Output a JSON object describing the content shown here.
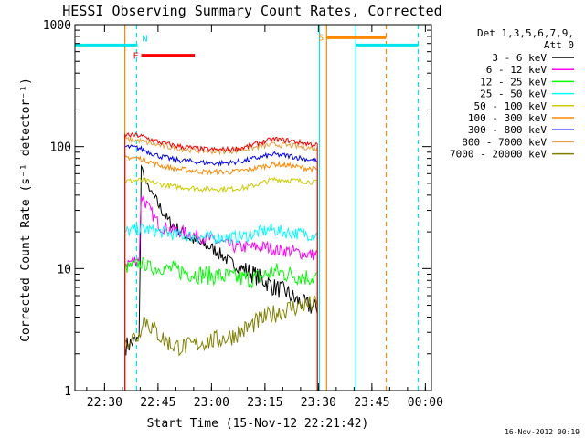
{
  "chart_data": {
    "type": "line",
    "title": "HESSI Observing Summary Count Rates, Corrected",
    "xlabel": "Start Time (15-Nov-12 22:21:42)",
    "ylabel": "Corrected Count Rate (s⁻¹ detector⁻¹)",
    "footer": "16-Nov-2012 00:19",
    "x_unit": "minutes since 22:21:42 on 15-Nov-12",
    "xlim": [
      0,
      100
    ],
    "ylim": [
      1,
      1000
    ],
    "yscale": "log",
    "x_ticks": [
      {
        "label": "22:30",
        "x": 8.3
      },
      {
        "label": "22:45",
        "x": 23.3
      },
      {
        "label": "23:00",
        "x": 38.3
      },
      {
        "label": "23:15",
        "x": 53.3
      },
      {
        "label": "23:30",
        "x": 68.3
      },
      {
        "label": "23:45",
        "x": 83.3
      },
      {
        "label": "00:00",
        "x": 98.3
      }
    ],
    "y_ticks": [
      {
        "label": "1",
        "y": 1
      },
      {
        "label": "10",
        "y": 10
      },
      {
        "label": "100",
        "y": 100
      },
      {
        "label": "1000",
        "y": 1000
      }
    ],
    "legend": {
      "header_line1": "Det 1,3,5,6,7,9,",
      "header_line2": "Att 0",
      "placement": "right"
    },
    "series": [
      {
        "name": "3 - 6 keV",
        "color": "#000000",
        "points": [
          [
            14,
            2.3
          ],
          [
            18,
            2.6
          ],
          [
            18.6,
            70
          ],
          [
            20,
            50
          ],
          [
            23,
            35
          ],
          [
            26,
            25
          ],
          [
            29,
            21
          ],
          [
            32,
            18
          ],
          [
            35,
            16
          ],
          [
            38,
            15
          ],
          [
            41,
            13
          ],
          [
            44,
            11
          ],
          [
            47,
            10
          ],
          [
            50,
            9
          ],
          [
            53,
            8
          ],
          [
            56,
            7
          ],
          [
            59,
            6.5
          ],
          [
            62,
            5.5
          ],
          [
            65,
            5
          ],
          [
            68,
            4.7
          ]
        ]
      },
      {
        "name": "6 - 12 keV",
        "color": "#ff00ff",
        "points": [
          [
            14,
            11
          ],
          [
            18,
            12
          ],
          [
            18.6,
            40
          ],
          [
            21,
            30
          ],
          [
            24,
            22
          ],
          [
            27,
            21
          ],
          [
            30,
            20
          ],
          [
            33,
            19
          ],
          [
            36,
            18
          ],
          [
            39,
            17
          ],
          [
            42,
            16
          ],
          [
            45,
            15
          ],
          [
            48,
            15
          ],
          [
            51,
            15
          ],
          [
            54,
            15
          ],
          [
            57,
            14
          ],
          [
            60,
            14
          ],
          [
            63,
            13.5
          ],
          [
            66,
            13
          ],
          [
            68,
            13
          ]
        ]
      },
      {
        "name": "12 - 25 keV",
        "color": "#00ff00",
        "points": [
          [
            14,
            10
          ],
          [
            18,
            11
          ],
          [
            19,
            11
          ],
          [
            22,
            10
          ],
          [
            26,
            10
          ],
          [
            30,
            9.5
          ],
          [
            34,
            9
          ],
          [
            38,
            8.8
          ],
          [
            42,
            8.6
          ],
          [
            46,
            8.3
          ],
          [
            50,
            8.2
          ],
          [
            54,
            9
          ],
          [
            56,
            9.5
          ],
          [
            60,
            9
          ],
          [
            64,
            8.6
          ],
          [
            68,
            8.4
          ]
        ]
      },
      {
        "name": "25 - 50 keV",
        "color": "#00ffff",
        "points": [
          [
            14,
            20
          ],
          [
            18,
            21
          ],
          [
            20,
            21
          ],
          [
            24,
            20
          ],
          [
            28,
            19
          ],
          [
            32,
            18.5
          ],
          [
            36,
            18
          ],
          [
            40,
            18
          ],
          [
            44,
            18
          ],
          [
            48,
            18.5
          ],
          [
            52,
            20
          ],
          [
            55,
            21
          ],
          [
            58,
            20
          ],
          [
            62,
            19.5
          ],
          [
            66,
            19
          ],
          [
            68,
            19
          ]
        ]
      },
      {
        "name": "50 - 100 keV",
        "color": "#cccc00",
        "points": [
          [
            14,
            52
          ],
          [
            18,
            53
          ],
          [
            20,
            52
          ],
          [
            24,
            49
          ],
          [
            28,
            47
          ],
          [
            32,
            46
          ],
          [
            36,
            45
          ],
          [
            40,
            45
          ],
          [
            44,
            45
          ],
          [
            48,
            46
          ],
          [
            52,
            50
          ],
          [
            56,
            54
          ],
          [
            60,
            53
          ],
          [
            64,
            52
          ],
          [
            68,
            51
          ]
        ]
      },
      {
        "name": "100 - 300 keV",
        "color": "#ff8800",
        "points": [
          [
            14,
            82
          ],
          [
            18,
            80
          ],
          [
            20,
            77
          ],
          [
            24,
            70
          ],
          [
            28,
            66
          ],
          [
            32,
            64
          ],
          [
            36,
            62
          ],
          [
            40,
            62
          ],
          [
            44,
            62
          ],
          [
            48,
            64
          ],
          [
            52,
            68
          ],
          [
            56,
            72
          ],
          [
            60,
            70
          ],
          [
            64,
            67
          ],
          [
            68,
            65
          ]
        ]
      },
      {
        "name": "300 - 800 keV",
        "color": "#0000ff",
        "points": [
          [
            14,
            100
          ],
          [
            18,
            97
          ],
          [
            20,
            92
          ],
          [
            24,
            83
          ],
          [
            28,
            78
          ],
          [
            32,
            76
          ],
          [
            36,
            74
          ],
          [
            40,
            73
          ],
          [
            44,
            74
          ],
          [
            48,
            77
          ],
          [
            52,
            82
          ],
          [
            56,
            86
          ],
          [
            60,
            84
          ],
          [
            64,
            80
          ],
          [
            68,
            76
          ]
        ]
      },
      {
        "name": "800 - 7000 keV",
        "color": "#e8a040",
        "points": [
          [
            14,
            115
          ],
          [
            18,
            112
          ],
          [
            20,
            108
          ],
          [
            24,
            102
          ],
          [
            28,
            97
          ],
          [
            32,
            94
          ],
          [
            36,
            92
          ],
          [
            40,
            91
          ],
          [
            44,
            92
          ],
          [
            48,
            95
          ],
          [
            52,
            100
          ],
          [
            56,
            104
          ],
          [
            60,
            102
          ],
          [
            64,
            99
          ],
          [
            68,
            96
          ]
        ]
      },
      {
        "name": "7000 - 20000 keV",
        "color": "#808000",
        "points": [
          [
            14,
            2.6
          ],
          [
            18,
            2.8
          ],
          [
            19,
            4
          ],
          [
            22,
            3.2
          ],
          [
            25,
            2.6
          ],
          [
            28,
            2.3
          ],
          [
            32,
            2.3
          ],
          [
            36,
            2.5
          ],
          [
            40,
            2.6
          ],
          [
            44,
            2.8
          ],
          [
            48,
            3.2
          ],
          [
            52,
            3.8
          ],
          [
            56,
            4.3
          ],
          [
            60,
            4.7
          ],
          [
            64,
            5
          ],
          [
            68,
            5.1
          ]
        ]
      },
      {
        "name": "",
        "color": "#ff0000",
        "points": [
          [
            14,
            125
          ],
          [
            18,
            123
          ],
          [
            20,
            118
          ],
          [
            24,
            108
          ],
          [
            28,
            102
          ],
          [
            32,
            98
          ],
          [
            36,
            95
          ],
          [
            40,
            94
          ],
          [
            44,
            95
          ],
          [
            48,
            99
          ],
          [
            52,
            108
          ],
          [
            56,
            115
          ],
          [
            60,
            112
          ],
          [
            64,
            107
          ],
          [
            68,
            103
          ]
        ]
      }
    ],
    "flag_bars": [
      {
        "label": "",
        "color": "#00e5ee",
        "x0": 0,
        "x1": 17.3,
        "y": 680
      },
      {
        "label": "N",
        "color": "#00e5ee",
        "x0": 17.3,
        "x1": 17.3,
        "y": 680
      },
      {
        "label": "F",
        "color": "#ff0000",
        "x0": 18.6,
        "x1": 33.6,
        "y": 560
      },
      {
        "label": "S",
        "color": "#ff8800",
        "x0": 70.6,
        "x1": 87.3,
        "y": 780
      },
      {
        "label": "",
        "color": "#00e5ee",
        "x0": 78.8,
        "x1": 96.3,
        "y": 680
      }
    ],
    "vertical_lines": [
      {
        "x": 14.0,
        "color": "#ff8800",
        "style": "solid"
      },
      {
        "x": 17.3,
        "color": "#00e5ee",
        "style": "dashed"
      },
      {
        "x": 68.6,
        "color": "#00e5ee",
        "style": "solid"
      },
      {
        "x": 70.6,
        "color": "#ff8800",
        "style": "solid"
      },
      {
        "x": 78.8,
        "color": "#00e5ee",
        "style": "solid"
      },
      {
        "x": 87.3,
        "color": "#ff8800",
        "style": "dashed"
      },
      {
        "x": 96.3,
        "color": "#00e5ee",
        "style": "dashed"
      }
    ]
  }
}
